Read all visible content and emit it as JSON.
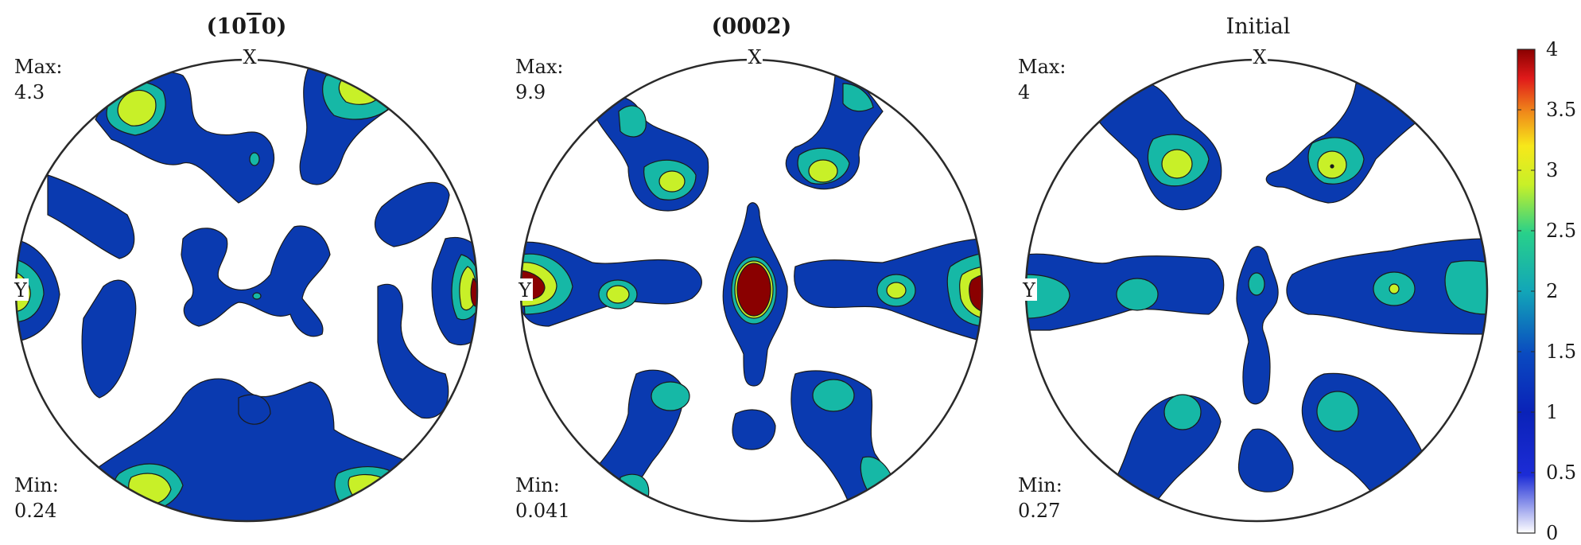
{
  "chart_data": {
    "type": "heatmap",
    "colormap": [
      "#ffffff",
      "#0a1fb8",
      "#0a3ab0",
      "#16b8a6",
      "#c8f028",
      "#f7e81a",
      "#f08a1a",
      "#e01a1a",
      "#8a0000"
    ],
    "colorbar": {
      "ticks": [
        "0",
        "0.5",
        "1",
        "1.5",
        "2",
        "2.5",
        "3",
        "3.5",
        "4"
      ],
      "range": [
        0,
        4
      ]
    },
    "panels": [
      {
        "title_main": "(10",
        "title_bar": "1",
        "title_end": "0)",
        "bold": true,
        "max_label": "Max:",
        "max_value": "4.3",
        "min_label": "Min:",
        "min_value": "0.24",
        "x_label": "X",
        "y_label": "Y"
      },
      {
        "title_main": "(0002)",
        "bold": true,
        "max_label": "Max:",
        "max_value": "9.9",
        "min_label": "Min:",
        "min_value": "0.041",
        "x_label": "X",
        "y_label": "Y"
      },
      {
        "title_main": "Initial",
        "bold": false,
        "max_label": "Max:",
        "max_value": "4",
        "min_label": "Min:",
        "min_value": "0.27",
        "x_label": "X",
        "y_label": "Y"
      }
    ]
  }
}
